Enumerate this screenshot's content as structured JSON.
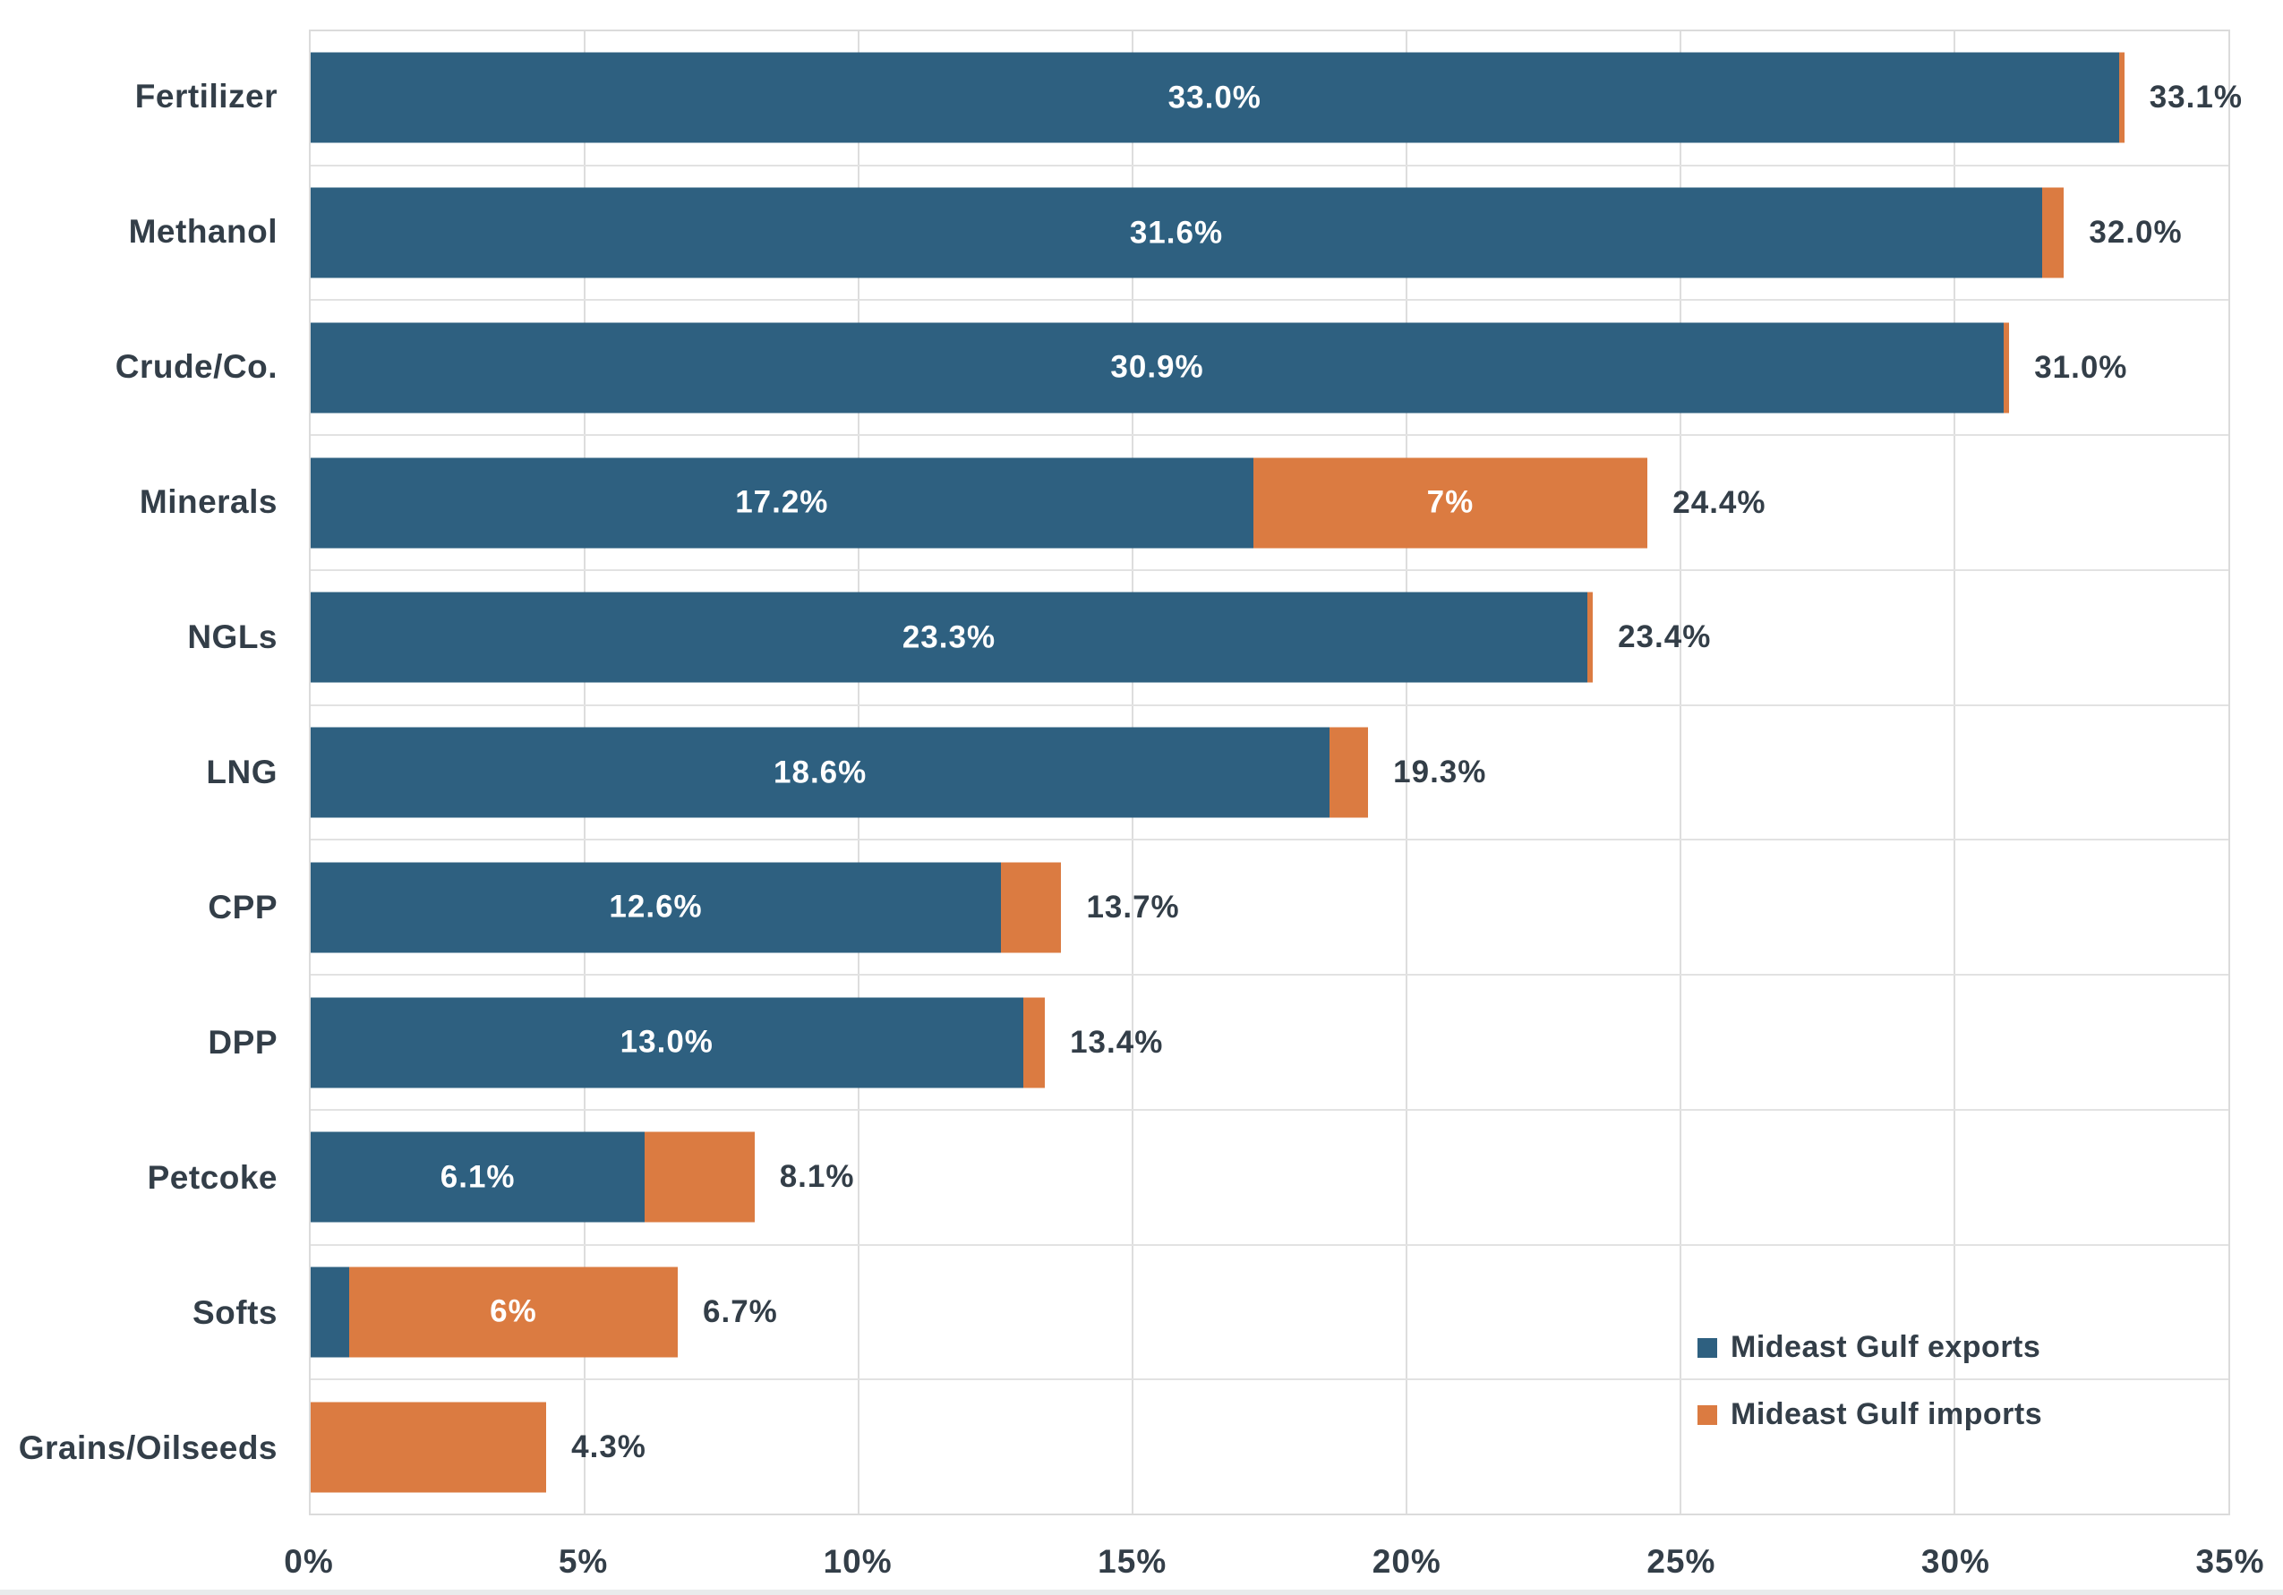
{
  "chart_data": {
    "type": "bar",
    "orientation": "horizontal",
    "stacked": true,
    "title": "",
    "xlabel": "",
    "ylabel": "",
    "categories": [
      "Fertilizer",
      "Methanol",
      "Crude/Co.",
      "Minerals",
      "NGLs",
      "LNG",
      "CPP",
      "DPP",
      "Petcoke",
      "Softs",
      "Grains/Oilseeds"
    ],
    "series": [
      {
        "name": "Mideast Gulf exports",
        "color": "#2E6080",
        "values": [
          33.0,
          31.6,
          30.9,
          17.2,
          23.3,
          18.6,
          12.6,
          13.0,
          6.1,
          0.7,
          0.0
        ],
        "segment_labels": [
          "33.0%",
          "31.6%",
          "30.9%",
          "17.2%",
          "23.3%",
          "18.6%",
          "12.6%",
          "13.0%",
          "6.1%",
          "",
          ""
        ]
      },
      {
        "name": "Mideast Gulf imports",
        "color": "#DB7B41",
        "values": [
          0.1,
          0.4,
          0.1,
          7.2,
          0.1,
          0.7,
          1.1,
          0.4,
          2.0,
          6.0,
          4.3
        ],
        "segment_labels": [
          "",
          "",
          "",
          "7%",
          "",
          "",
          "",
          "",
          "",
          "6%",
          ""
        ]
      }
    ],
    "total_labels": [
      "33.1%",
      "32.0%",
      "31.0%",
      "24.4%",
      "23.4%",
      "19.3%",
      "13.7%",
      "13.4%",
      "8.1%",
      "6.7%",
      "4.3%"
    ],
    "x_ticks": [
      "0%",
      "5%",
      "10%",
      "15%",
      "20%",
      "25%",
      "30%",
      "35%"
    ],
    "xlim": [
      0,
      35
    ],
    "grid": true,
    "legend_position": "bottom-right"
  },
  "style": {
    "export_color": "#2E6080",
    "import_color": "#DB7B41",
    "text_color": "#333E48",
    "bar_label_color": "#FFFFFF",
    "grid_color": "#DDDDDD",
    "background": "#FFFFFF"
  }
}
